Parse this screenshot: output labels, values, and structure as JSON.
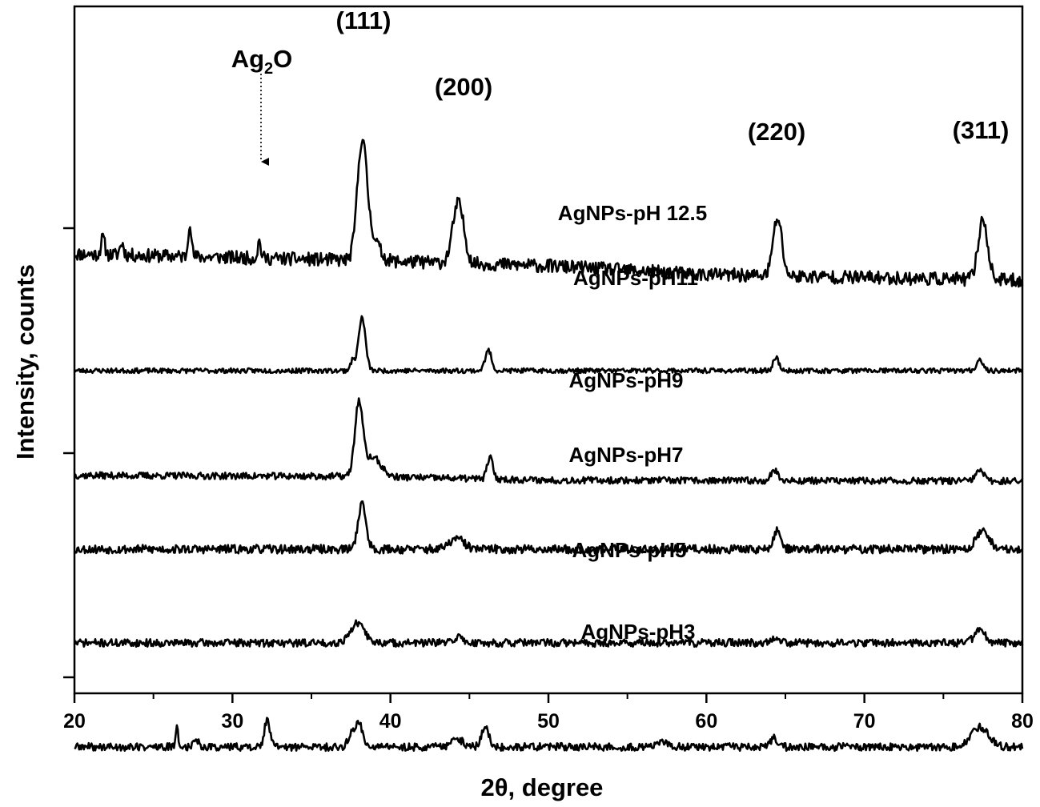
{
  "chart_data": {
    "type": "line",
    "xlabel": "2θ, degree",
    "ylabel": "Intensity, counts",
    "xlim": [
      20,
      80
    ],
    "xticks": [
      "20",
      "30",
      "40",
      "50",
      "60",
      "70",
      "80"
    ],
    "grid": false,
    "legend": "none",
    "peak_labels": [
      "(111)",
      "(200)",
      "(220)",
      "(311)"
    ],
    "impurity_label": {
      "main": "Ag",
      "sub": "2",
      "tail": "O"
    },
    "series": [
      {
        "name": "AgNPs-pH 12.5",
        "baseline": 0.38,
        "noise": 0.14,
        "seed": 11,
        "slope": [
          [
            20,
            0.55
          ],
          [
            40,
            0.4
          ],
          [
            50,
            0.3
          ],
          [
            60,
            0.12
          ],
          [
            80,
            0.0
          ]
        ],
        "peaks": [
          [
            21.8,
            0.35,
            0.12
          ],
          [
            23.0,
            0.25,
            0.12
          ],
          [
            27.3,
            0.75,
            0.1
          ],
          [
            31.7,
            0.35,
            0.1
          ],
          [
            38.2,
            2.45,
            0.3
          ],
          [
            38.9,
            0.45,
            0.4
          ],
          [
            44.3,
            1.25,
            0.35
          ],
          [
            64.5,
            1.2,
            0.28
          ],
          [
            77.5,
            1.25,
            0.3
          ]
        ]
      },
      {
        "name": "AgNPs-pH11",
        "baseline": 0.0,
        "noise": 0.05,
        "seed": 23,
        "slope": [
          [
            20,
            0
          ],
          [
            80,
            0
          ]
        ],
        "peaks": [
          [
            37.6,
            0.2,
            0.15
          ],
          [
            38.2,
            1.1,
            0.22
          ],
          [
            46.2,
            0.42,
            0.2
          ],
          [
            64.4,
            0.28,
            0.18
          ],
          [
            77.3,
            0.26,
            0.18
          ]
        ]
      },
      {
        "name": "AgNPs-pH9",
        "baseline": 0.0,
        "noise": 0.07,
        "seed": 37,
        "slope": [
          [
            20,
            0.12
          ],
          [
            38,
            0.1
          ],
          [
            50,
            0.02
          ],
          [
            80,
            0.0
          ]
        ],
        "peaks": [
          [
            38.0,
            1.5,
            0.25
          ],
          [
            38.9,
            0.4,
            0.5
          ],
          [
            46.3,
            0.45,
            0.18
          ],
          [
            64.3,
            0.22,
            0.22
          ],
          [
            77.3,
            0.22,
            0.25
          ]
        ]
      },
      {
        "name": "AgNPs-pH7",
        "baseline": 0.0,
        "noise": 0.09,
        "seed": 53,
        "slope": [
          [
            20,
            0
          ],
          [
            80,
            0
          ]
        ],
        "peaks": [
          [
            38.2,
            0.95,
            0.25
          ],
          [
            44.2,
            0.22,
            0.45
          ],
          [
            64.5,
            0.4,
            0.22
          ],
          [
            77.5,
            0.38,
            0.4
          ]
        ]
      },
      {
        "name": "AgNPs-pH5",
        "baseline": 0.0,
        "noise": 0.08,
        "seed": 71,
        "slope": [
          [
            20,
            0
          ],
          [
            80,
            0
          ]
        ],
        "peaks": [
          [
            37.9,
            0.4,
            0.45
          ],
          [
            44.3,
            0.12,
            0.3
          ],
          [
            64.4,
            0.12,
            0.3
          ],
          [
            77.3,
            0.25,
            0.35
          ]
        ]
      },
      {
        "name": "AgNPs-pH3",
        "baseline": 0.0,
        "noise": 0.08,
        "seed": 89,
        "slope": [
          [
            20,
            0
          ],
          [
            80,
            0
          ]
        ],
        "peaks": [
          [
            26.5,
            0.4,
            0.08
          ],
          [
            27.7,
            0.18,
            0.15
          ],
          [
            32.2,
            0.55,
            0.18
          ],
          [
            37.5,
            0.22,
            0.2
          ],
          [
            38.0,
            0.5,
            0.25
          ],
          [
            44.2,
            0.18,
            0.35
          ],
          [
            46.0,
            0.42,
            0.22
          ],
          [
            57.3,
            0.08,
            0.4
          ],
          [
            64.3,
            0.18,
            0.22
          ],
          [
            77.3,
            0.42,
            0.55
          ]
        ]
      }
    ]
  }
}
